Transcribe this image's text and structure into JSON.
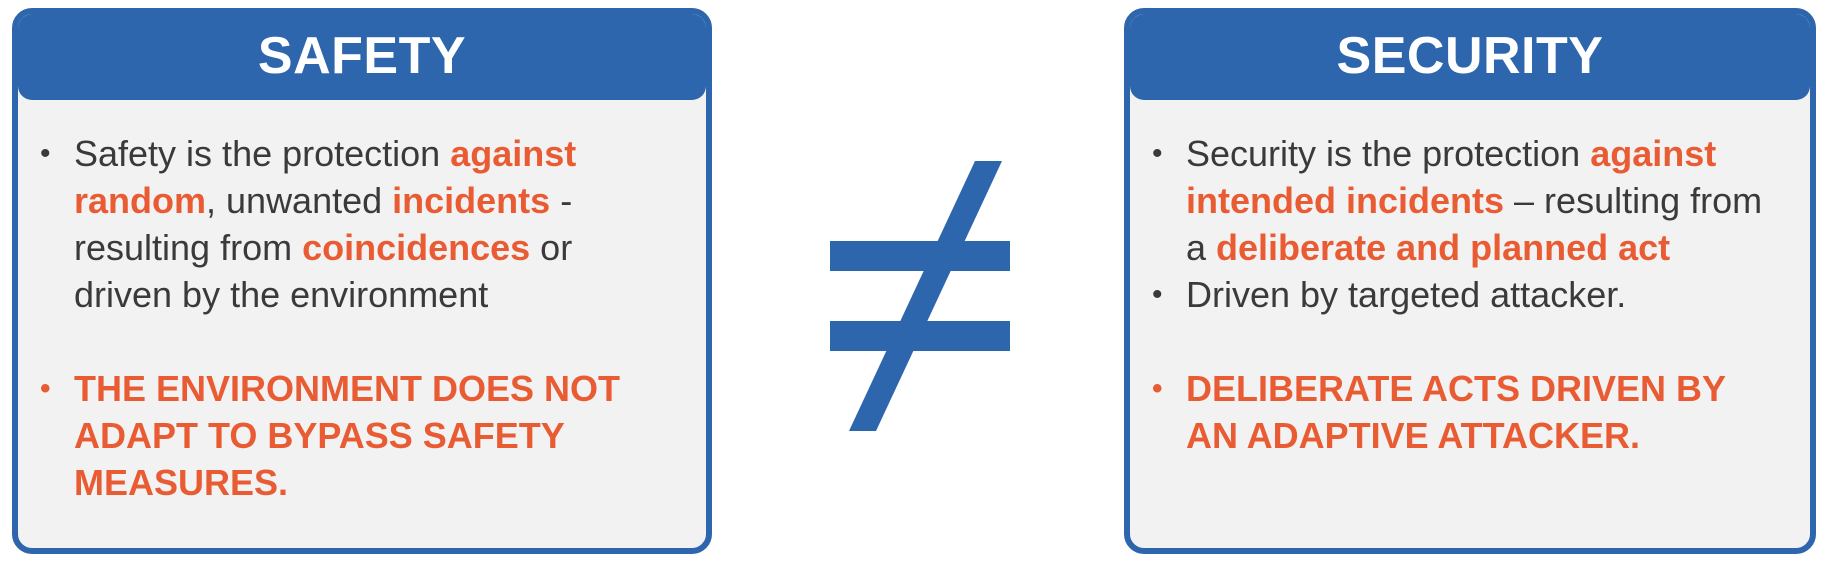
{
  "safety": {
    "title": "SAFETY",
    "point1": {
      "t1": "Safety is the protection ",
      "h1": "against random",
      "t2": ", unwanted ",
      "h2": "incidents",
      "t3": " - resulting from ",
      "h3": "coincidences",
      "t4": " or driven by the environment"
    },
    "point2": "THE ENVIRONMENT DOES NOT ADAPT TO BYPASS SAFETY MEASURES."
  },
  "security": {
    "title": "SECURITY",
    "point1": {
      "t1": "Security is the protection ",
      "h1": "against intended incidents",
      "t2": " – resulting from a ",
      "h2": "deliberate and planned act"
    },
    "point2": "Driven by targeted attacker.",
    "point3": "DELIBERATE ACTS DRIVEN BY AN ADAPTIVE ATTACKER."
  },
  "bullet": "•",
  "colors": {
    "primary": "#2e66ad",
    "accent": "#e95c33",
    "card_bg": "#f2f2f2",
    "text": "#3a3a3a"
  }
}
